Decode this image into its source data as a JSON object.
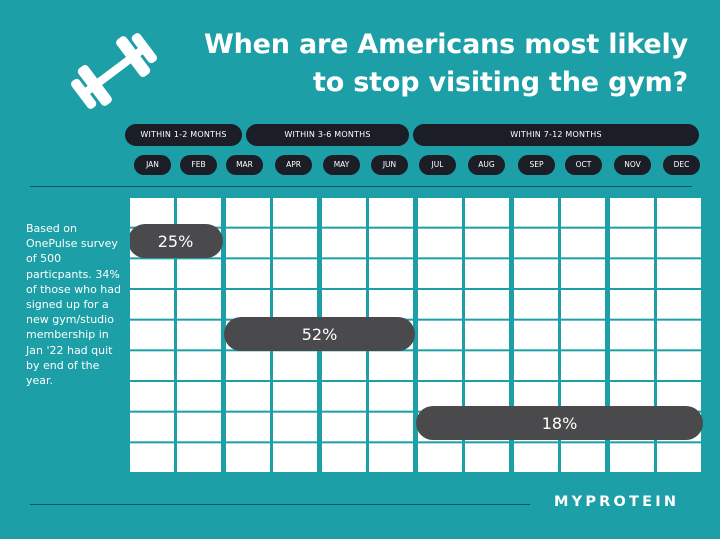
{
  "title": "When are Americans most likely to stop visiting the gym?",
  "icon": "dumbbell-icon",
  "colors": {
    "background": "#1c9fa6",
    "pill": "#1b1e26",
    "bar": "#4a4a4c",
    "cell": "#ffffff"
  },
  "groups": [
    {
      "label": "WITHIN 1-2 MONTHS",
      "months": [
        "JAN",
        "FEB"
      ]
    },
    {
      "label": "WITHIN 3-6 MONTHS",
      "months": [
        "MAR",
        "APR",
        "MAY",
        "JUN"
      ]
    },
    {
      "label": "WITHIN 7-12 MONTHS",
      "months": [
        "JUL",
        "AUG",
        "SEP",
        "OCT",
        "NOV",
        "DEC"
      ]
    }
  ],
  "note": "Based on OnePulse survey of 500 particpants. 34% of those who had signed up for a new gym/studio membership in Jan '22 had quit by end of the year.",
  "brand": "MYPROTEIN",
  "chart_data": {
    "type": "bar",
    "categories": [
      "JAN",
      "FEB",
      "MAR",
      "APR",
      "MAY",
      "JUN",
      "JUL",
      "AUG",
      "SEP",
      "OCT",
      "NOV",
      "DEC"
    ],
    "series": [
      {
        "start": "JAN",
        "end": "FEB",
        "value": 25,
        "label": "25%"
      },
      {
        "start": "MAR",
        "end": "JUN",
        "value": 52,
        "label": "52%"
      },
      {
        "start": "JUL",
        "end": "DEC",
        "value": 18,
        "label": "18%"
      }
    ],
    "xlabel": "",
    "ylabel": "",
    "grid": true
  }
}
